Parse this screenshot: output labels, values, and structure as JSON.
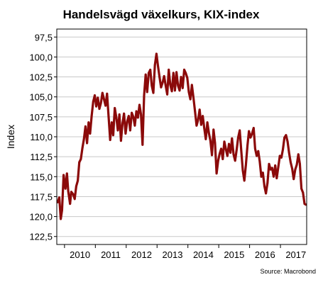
{
  "chart_data": {
    "type": "line",
    "title": "Handelsvägd växelkurs, KIX-index",
    "ylabel": "Index",
    "xlabel": "",
    "source": "Source: Macrobond",
    "y_axis_inverted": true,
    "ylim": [
      96.5,
      123.5
    ],
    "y_ticks": [
      97.5,
      100.0,
      102.5,
      105.0,
      107.5,
      110.0,
      112.5,
      115.0,
      117.5,
      120.0,
      122.5
    ],
    "y_tick_labels": [
      "97,5",
      "100,0",
      "102,5",
      "105,0",
      "107,5",
      "110,0",
      "112,5",
      "115,0",
      "117,5",
      "120,0",
      "122,5"
    ],
    "xlim": [
      2009.75,
      2017.85
    ],
    "x_ticks": [
      2010,
      2011,
      2012,
      2013,
      2014,
      2015,
      2016,
      2017
    ],
    "x_tick_labels": [
      "2010",
      "2011",
      "2012",
      "2013",
      "2014",
      "2015",
      "2016",
      "2017"
    ],
    "grid": true,
    "series": [
      {
        "color": "#8b0a0a",
        "x": [
          2009.78,
          2009.83,
          2009.88,
          2009.92,
          2009.97,
          2010.03,
          2010.08,
          2010.12,
          2010.18,
          2010.22,
          2010.28,
          2010.33,
          2010.38,
          2010.43,
          2010.48,
          2010.53,
          2010.58,
          2010.63,
          2010.68,
          2010.73,
          2010.78,
          2010.83,
          2010.88,
          2010.93,
          2010.98,
          2011.03,
          2011.08,
          2011.13,
          2011.18,
          2011.23,
          2011.28,
          2011.33,
          2011.38,
          2011.43,
          2011.48,
          2011.53,
          2011.58,
          2011.63,
          2011.68,
          2011.73,
          2011.78,
          2011.83,
          2011.88,
          2011.93,
          2011.98,
          2012.03,
          2012.08,
          2012.13,
          2012.18,
          2012.23,
          2012.28,
          2012.33,
          2012.38,
          2012.43,
          2012.48,
          2012.53,
          2012.58,
          2012.63,
          2012.68,
          2012.73,
          2012.78,
          2012.83,
          2012.88,
          2012.93,
          2012.98,
          2013.03,
          2013.08,
          2013.13,
          2013.18,
          2013.23,
          2013.28,
          2013.33,
          2013.38,
          2013.43,
          2013.48,
          2013.53,
          2013.58,
          2013.63,
          2013.68,
          2013.73,
          2013.78,
          2013.83,
          2013.88,
          2013.93,
          2013.98,
          2014.03,
          2014.08,
          2014.13,
          2014.18,
          2014.23,
          2014.28,
          2014.33,
          2014.38,
          2014.43,
          2014.48,
          2014.53,
          2014.58,
          2014.63,
          2014.68,
          2014.73,
          2014.78,
          2014.83,
          2014.88,
          2014.93,
          2014.98,
          2015.03,
          2015.08,
          2015.13,
          2015.18,
          2015.23,
          2015.28,
          2015.33,
          2015.38,
          2015.43,
          2015.48,
          2015.53,
          2015.58,
          2015.63,
          2015.68,
          2015.73,
          2015.78,
          2015.83,
          2015.88,
          2015.93,
          2015.98,
          2016.03,
          2016.08,
          2016.13,
          2016.18,
          2016.23,
          2016.28,
          2016.33,
          2016.38,
          2016.43,
          2016.48,
          2016.53,
          2016.58,
          2016.63,
          2016.68,
          2016.73,
          2016.78,
          2016.83,
          2016.88,
          2016.93,
          2016.98,
          2017.03,
          2017.08,
          2017.13,
          2017.18,
          2017.23,
          2017.28,
          2017.33,
          2017.38,
          2017.43,
          2017.48,
          2017.53,
          2017.58,
          2017.63,
          2017.68,
          2017.73,
          2017.78,
          2017.82
        ],
        "y": [
          118.2,
          117.6,
          120.3,
          119.2,
          114.8,
          116.5,
          114.6,
          116.8,
          118.4,
          116.9,
          117.2,
          117.8,
          116.2,
          115.5,
          113.2,
          112.8,
          111.4,
          110.3,
          108.7,
          110.8,
          108.2,
          109.6,
          107.4,
          105.6,
          104.8,
          106.2,
          105.1,
          106.5,
          105.8,
          104.5,
          105.3,
          106.1,
          104.6,
          107.5,
          110.4,
          108.2,
          109.8,
          106.4,
          107.6,
          109.2,
          107.2,
          110.5,
          108.3,
          107.1,
          109.6,
          108.1,
          107.4,
          109.2,
          107.0,
          107.5,
          108.6,
          106.8,
          107.6,
          106.0,
          107.2,
          111.0,
          104.8,
          102.2,
          104.4,
          102.0,
          101.6,
          103.6,
          104.5,
          101.0,
          99.6,
          101.1,
          102.5,
          103.8,
          103.2,
          102.4,
          103.6,
          104.7,
          101.6,
          103.5,
          104.3,
          102.0,
          104.2,
          101.9,
          103.6,
          104.2,
          102.5,
          103.9,
          101.6,
          102.0,
          102.6,
          104.4,
          105.3,
          103.5,
          105.1,
          106.8,
          108.6,
          107.9,
          106.6,
          108.5,
          107.4,
          108.9,
          110.3,
          108.2,
          109.5,
          110.5,
          112.3,
          109.1,
          110.8,
          114.6,
          113.0,
          112.1,
          111.5,
          112.8,
          110.6,
          111.5,
          112.4,
          110.9,
          112.0,
          110.2,
          112.2,
          113.0,
          111.6,
          110.1,
          109.2,
          111.8,
          114.2,
          115.5,
          113.5,
          111.1,
          109.3,
          110.1,
          109.6,
          108.9,
          111.5,
          112.4,
          111.8,
          113.1,
          115.0,
          114.5,
          116.2,
          117.1,
          115.8,
          113.4,
          114.1,
          113.9,
          115.0,
          113.6,
          115.2,
          113.8,
          112.4,
          112.6,
          111.6,
          110.1,
          109.8,
          110.6,
          112.0,
          113.2,
          114.0,
          115.3,
          114.1,
          113.5,
          112.2,
          113.4,
          116.5,
          117.0,
          118.4,
          118.5
        ]
      }
    ]
  }
}
